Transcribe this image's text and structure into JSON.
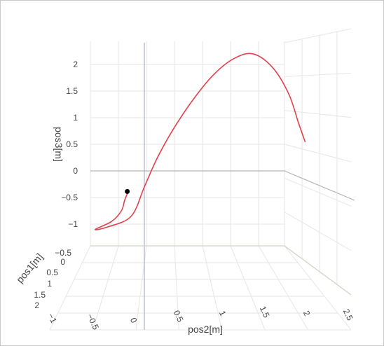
{
  "chart_data": {
    "type": "line3d",
    "title": "",
    "axes": {
      "x": {
        "label": "pos2[m]",
        "ticks": [
          "−1",
          "−0.5",
          "0",
          "0.5",
          "1",
          "1.5",
          "2",
          "2.5"
        ],
        "range": [
          -1,
          2.5
        ]
      },
      "y": {
        "label": "pos1[m]",
        "ticks": [
          "−0.5",
          "0",
          "0.5",
          "1",
          "1.5",
          "2"
        ],
        "range": [
          -0.5,
          2
        ]
      },
      "z": {
        "label": "pos3[m]",
        "ticks": [
          "−1",
          "−0.5",
          "0",
          "0.5",
          "1",
          "1.5",
          "2"
        ],
        "range": [
          -1,
          2.2
        ]
      }
    },
    "grid": true,
    "legend": "none",
    "series": [
      {
        "color": "#e0424b",
        "trajectory_screen_estimate": [
          [
            -0.25,
            -0.4
          ],
          [
            -0.3,
            -0.55
          ],
          [
            -0.35,
            -0.75
          ],
          [
            -0.5,
            -0.95
          ],
          [
            -0.75,
            -1.1
          ],
          [
            -0.55,
            -1.05
          ],
          [
            -0.2,
            -0.85
          ],
          [
            0.0,
            -0.3
          ],
          [
            0.2,
            0.25
          ],
          [
            0.45,
            0.8
          ],
          [
            0.75,
            1.35
          ],
          [
            1.05,
            1.8
          ],
          [
            1.35,
            2.1
          ],
          [
            1.65,
            2.2
          ],
          [
            1.95,
            1.95
          ],
          [
            2.2,
            1.45
          ],
          [
            2.35,
            0.9
          ],
          [
            2.45,
            0.55
          ]
        ]
      }
    ],
    "markers": [
      {
        "name": "start",
        "color": "#000000"
      }
    ],
    "colors": {
      "trajectory": "#e0424b",
      "marker": "#000000",
      "grid": "#e6e6e6",
      "axis_line": "#b4b4b4",
      "tick_text": "#444444"
    }
  }
}
